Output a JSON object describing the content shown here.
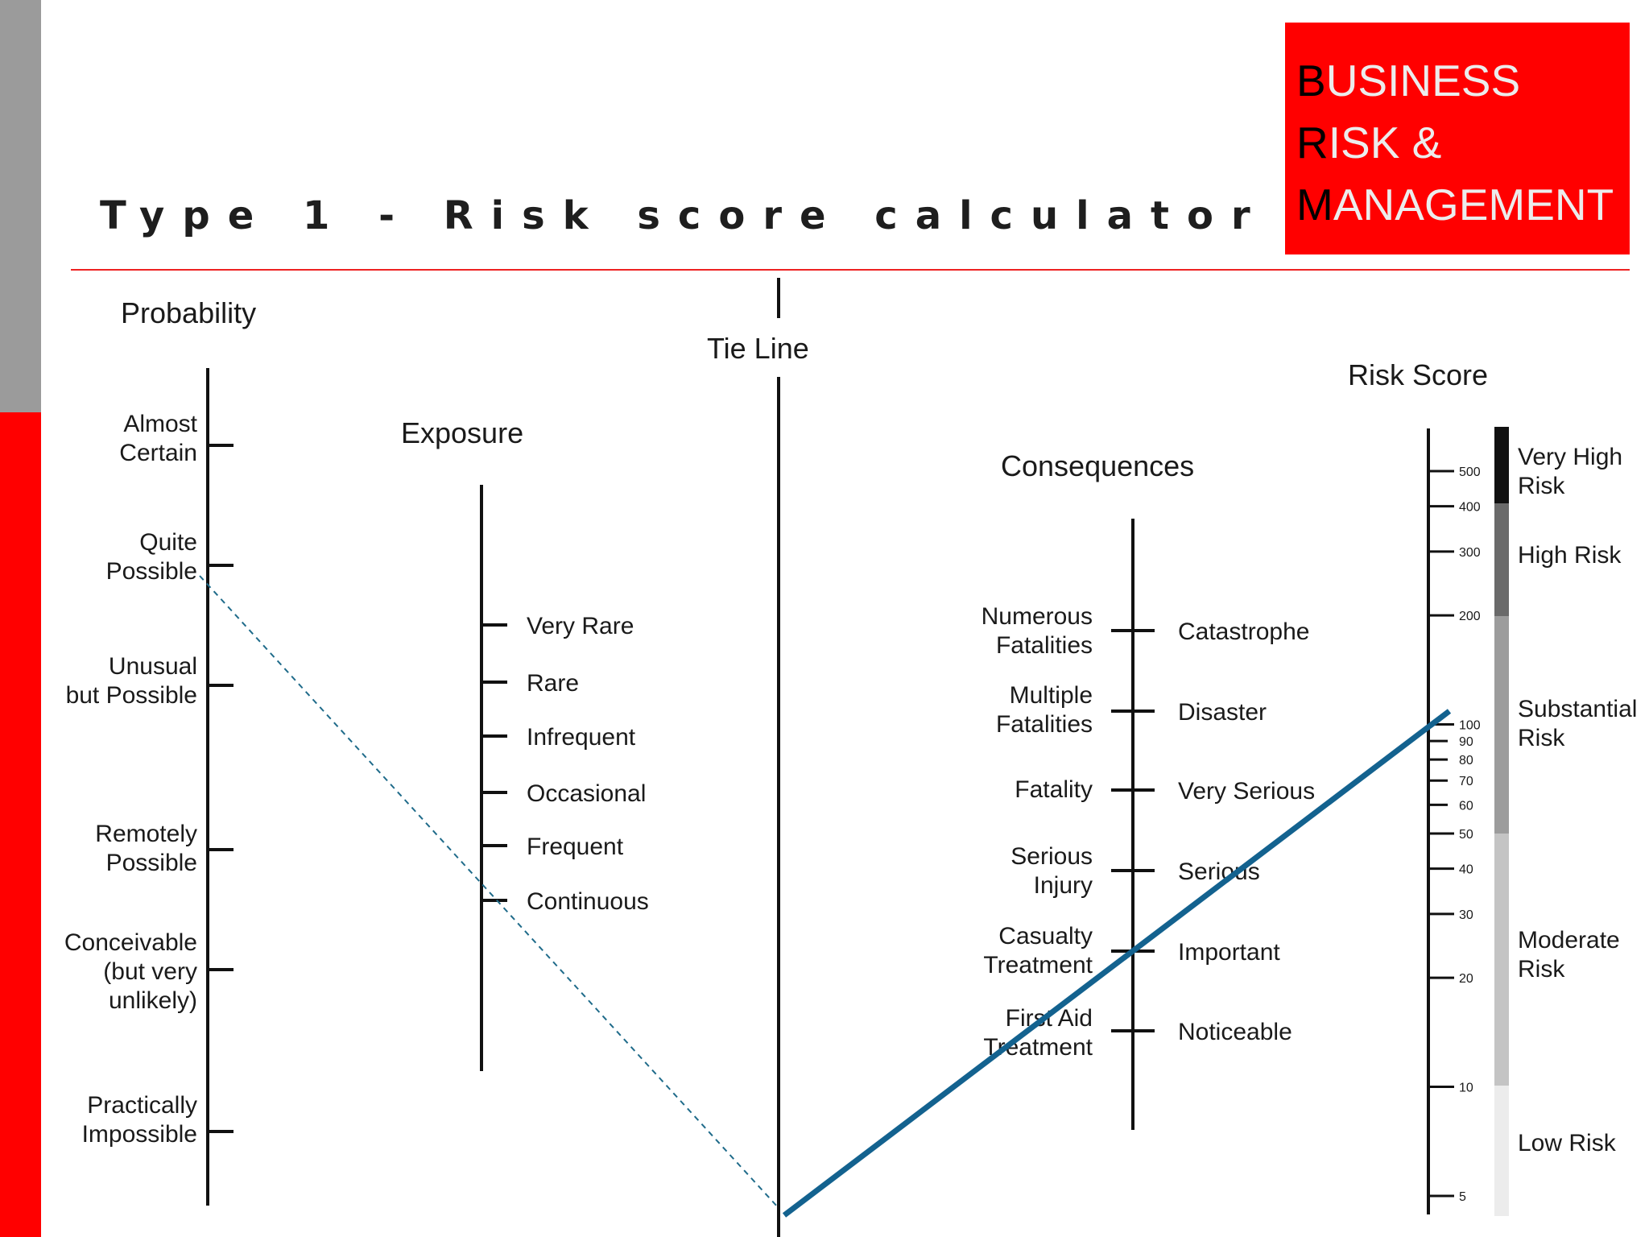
{
  "slide": {
    "title": "Type 1 - Risk score calculator",
    "brand": [
      {
        "cap": "B",
        "rest": "USINESS"
      },
      {
        "cap": "R",
        "rest": "ISK &"
      },
      {
        "cap": "M",
        "rest": "ANAGEMENT"
      }
    ]
  },
  "nomogram": {
    "probability": {
      "heading": "Probability",
      "ticks": [
        {
          "lines": [
            "Almost",
            "Certain"
          ]
        },
        {
          "lines": [
            "Quite",
            "Possible"
          ]
        },
        {
          "lines": [
            "Unusual",
            "but Possible"
          ]
        },
        {
          "lines": [
            "Remotely",
            "Possible"
          ]
        },
        {
          "lines": [
            "Conceivable",
            "(but very",
            "unlikely)"
          ]
        },
        {
          "lines": [
            "Practically",
            "Impossible"
          ]
        }
      ]
    },
    "exposure": {
      "heading": "Exposure",
      "ticks": [
        "Very Rare",
        "Rare",
        "Infrequent",
        "Occasional",
        "Frequent",
        "Continuous"
      ]
    },
    "tie_line": {
      "heading": "Tie Line"
    },
    "consequences": {
      "heading": "Consequences",
      "ticks": [
        {
          "left": [
            "Numerous",
            "Fatalities"
          ],
          "right": "Catastrophe"
        },
        {
          "left": [
            "Multiple",
            "Fatalities"
          ],
          "right": "Disaster"
        },
        {
          "left": [
            "Fatality"
          ],
          "right": "Very Serious"
        },
        {
          "left": [
            "Serious",
            "Injury"
          ],
          "right": "Serious"
        },
        {
          "left": [
            "Casualty",
            "Treatment"
          ],
          "right": "Important"
        },
        {
          "left": [
            "First Aid",
            "Treatment"
          ],
          "right": "Noticeable"
        }
      ]
    },
    "risk_score": {
      "heading": "Risk Score",
      "scale": [
        "500",
        "400",
        "300",
        "200",
        "100",
        "90",
        "80",
        "70",
        "60",
        "50",
        "40",
        "30",
        "20",
        "10",
        "5"
      ],
      "bands": [
        {
          "label": [
            "Very High",
            "Risk"
          ],
          "color": "#111111"
        },
        {
          "label": [
            "High Risk"
          ],
          "color": "#6a6a6a"
        },
        {
          "label": [
            "Substantial",
            "Risk"
          ],
          "color": "#9c9c9c"
        },
        {
          "label": [
            "Moderate",
            "Risk"
          ],
          "color": "#c4c4c4"
        },
        {
          "label": [
            "Low Risk"
          ],
          "color": "#ececec"
        }
      ]
    },
    "example_lines": {
      "dashed_color": "#1f6b8a",
      "solid_color": "#13628f"
    }
  }
}
